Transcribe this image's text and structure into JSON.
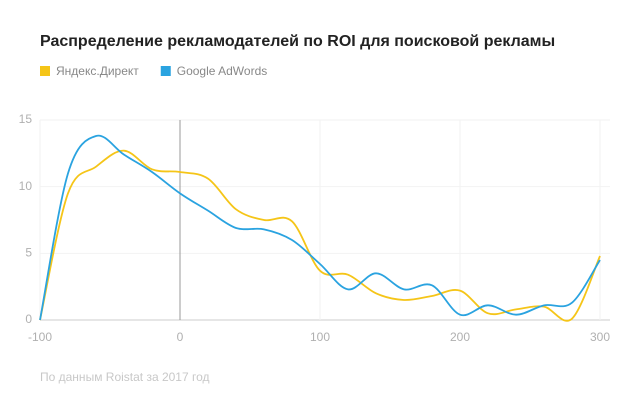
{
  "chart_data": {
    "type": "line",
    "title": "Распределение рекламодателей по ROI для поисковой рекламы",
    "footnote": "По данным Roistat за 2017 год",
    "x": [
      -100,
      -80,
      -60,
      -40,
      -20,
      0,
      20,
      40,
      60,
      80,
      100,
      120,
      140,
      160,
      180,
      200,
      220,
      240,
      260,
      280,
      300
    ],
    "series": [
      {
        "name": "Яндекс.Директ",
        "color": "#f5c518",
        "values": [
          0,
          9.5,
          11.5,
          12.7,
          11.3,
          11.1,
          10.6,
          8.3,
          7.5,
          7.4,
          3.7,
          3.4,
          2.0,
          1.5,
          1.8,
          2.2,
          0.5,
          0.8,
          1.0,
          0.1,
          4.8
        ]
      },
      {
        "name": "Google AdWords",
        "color": "#2aa3e0",
        "values": [
          0,
          11,
          13.8,
          12.4,
          11.1,
          9.5,
          8.2,
          6.9,
          6.8,
          6.0,
          4.2,
          2.3,
          3.5,
          2.3,
          2.6,
          0.4,
          1.1,
          0.4,
          1.1,
          1.3,
          4.5
        ]
      }
    ],
    "xlim": [
      -100,
      300
    ],
    "xticks": [
      -100,
      0,
      100,
      200,
      300
    ],
    "ylim": [
      0,
      15
    ],
    "yticks": [
      0,
      5,
      10,
      15
    ],
    "grid": true,
    "vline": 0,
    "legend": "top-left"
  }
}
